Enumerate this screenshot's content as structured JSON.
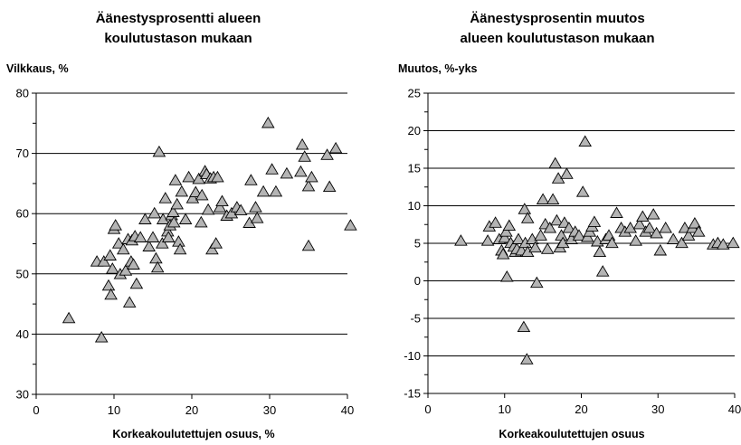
{
  "chart_data": [
    {
      "type": "scatter",
      "title": [
        "Äänestysprosentti  alueen",
        "koulutustason mukaan"
      ],
      "ylabel": "Vilkkaus, %",
      "xlabel": "Korkeakoulutettujen osuus, %",
      "xlim": [
        0,
        40
      ],
      "ylim": [
        30,
        80
      ],
      "xticks": [
        "0",
        "10",
        "20",
        "30",
        "40"
      ],
      "yticks": [
        "30",
        "40",
        "50",
        "60",
        "70",
        "80"
      ],
      "grid": "horizontal",
      "marker": "triangle",
      "marker_color": "#b4b4b4",
      "points": [
        [
          4.2,
          42.6
        ],
        [
          8.4,
          39.4
        ],
        [
          7.8,
          52.0
        ],
        [
          8.7,
          52.0
        ],
        [
          9.3,
          48.0
        ],
        [
          9.5,
          53.0
        ],
        [
          9.6,
          46.5
        ],
        [
          9.8,
          50.8
        ],
        [
          10.0,
          57.4
        ],
        [
          10.2,
          58.0
        ],
        [
          10.6,
          55.0
        ],
        [
          10.8,
          49.9
        ],
        [
          11.2,
          54.0
        ],
        [
          11.5,
          50.5
        ],
        [
          11.8,
          55.7
        ],
        [
          12.0,
          45.2
        ],
        [
          12.2,
          52.0
        ],
        [
          12.3,
          55.5
        ],
        [
          12.5,
          51.5
        ],
        [
          12.7,
          56.2
        ],
        [
          12.9,
          48.3
        ],
        [
          13.4,
          56.0
        ],
        [
          14.0,
          59.0
        ],
        [
          14.5,
          54.5
        ],
        [
          15.0,
          56.0
        ],
        [
          15.2,
          60.0
        ],
        [
          15.4,
          52.5
        ],
        [
          15.6,
          51.0
        ],
        [
          15.8,
          70.2
        ],
        [
          16.2,
          55.0
        ],
        [
          16.3,
          59.0
        ],
        [
          16.6,
          62.5
        ],
        [
          16.9,
          57.0
        ],
        [
          17.0,
          56.0
        ],
        [
          17.2,
          58.0
        ],
        [
          17.4,
          59.7
        ],
        [
          17.6,
          60.2
        ],
        [
          17.7,
          58.5
        ],
        [
          17.9,
          65.5
        ],
        [
          18.1,
          61.5
        ],
        [
          18.3,
          55.3
        ],
        [
          18.5,
          54.0
        ],
        [
          18.7,
          63.6
        ],
        [
          19.2,
          59.0
        ],
        [
          19.6,
          66.0
        ],
        [
          20.1,
          62.5
        ],
        [
          20.5,
          63.5
        ],
        [
          20.9,
          65.7
        ],
        [
          21.2,
          58.5
        ],
        [
          21.3,
          63.0
        ],
        [
          21.7,
          67.0
        ],
        [
          21.9,
          66.5
        ],
        [
          22.1,
          60.6
        ],
        [
          22.4,
          65.8
        ],
        [
          22.6,
          54.0
        ],
        [
          22.8,
          66.0
        ],
        [
          23.1,
          55.0
        ],
        [
          23.3,
          66.0
        ],
        [
          23.6,
          61.0
        ],
        [
          23.9,
          62.0
        ],
        [
          24.5,
          59.6
        ],
        [
          25.1,
          60.0
        ],
        [
          25.8,
          61.0
        ],
        [
          26.3,
          60.5
        ],
        [
          27.4,
          58.4
        ],
        [
          27.6,
          65.5
        ],
        [
          28.2,
          61.0
        ],
        [
          28.4,
          59.2
        ],
        [
          29.2,
          63.6
        ],
        [
          29.8,
          75.0
        ],
        [
          30.3,
          67.3
        ],
        [
          30.8,
          63.6
        ],
        [
          32.2,
          66.6
        ],
        [
          34.0,
          66.9
        ],
        [
          34.2,
          71.4
        ],
        [
          34.5,
          69.4
        ],
        [
          35.0,
          64.5
        ],
        [
          35.0,
          54.6
        ],
        [
          35.4,
          66.0
        ],
        [
          37.4,
          69.7
        ],
        [
          37.7,
          64.4
        ],
        [
          38.5,
          70.8
        ],
        [
          40.4,
          58.0
        ]
      ]
    },
    {
      "type": "scatter",
      "title": [
        "Äänestysprosentin muutos",
        "alueen koulutustason mukaan"
      ],
      "ylabel": "Muutos, %-yks",
      "xlabel": "Korkeakoulutettujen osuus",
      "xlim": [
        0,
        40
      ],
      "ylim": [
        -15,
        25
      ],
      "xticks": [
        "0",
        "10",
        "20",
        "30",
        "40"
      ],
      "yticks": [
        "-15",
        "-10",
        "-5",
        "0",
        "5",
        "10",
        "15",
        "20",
        "25"
      ],
      "grid": "horizontal",
      "marker": "triangle",
      "marker_color": "#b4b4b4",
      "points": [
        [
          4.3,
          5.3
        ],
        [
          7.8,
          5.3
        ],
        [
          8.0,
          7.2
        ],
        [
          8.8,
          7.7
        ],
        [
          9.3,
          5.5
        ],
        [
          9.6,
          4.0
        ],
        [
          9.8,
          3.5
        ],
        [
          10.0,
          5.7
        ],
        [
          10.2,
          6.5
        ],
        [
          10.3,
          0.5
        ],
        [
          10.6,
          7.3
        ],
        [
          10.8,
          5.0
        ],
        [
          11.2,
          4.5
        ],
        [
          11.4,
          3.8
        ],
        [
          11.6,
          4.2
        ],
        [
          11.8,
          5.5
        ],
        [
          12.2,
          4.0
        ],
        [
          12.5,
          -6.2
        ],
        [
          12.6,
          9.5
        ],
        [
          12.7,
          5.0
        ],
        [
          12.9,
          -10.5
        ],
        [
          13.0,
          8.3
        ],
        [
          13.0,
          3.8
        ],
        [
          13.6,
          5.5
        ],
        [
          14.0,
          4.4
        ],
        [
          14.2,
          -0.3
        ],
        [
          14.7,
          6.0
        ],
        [
          15.0,
          10.8
        ],
        [
          15.3,
          7.5
        ],
        [
          15.6,
          4.2
        ],
        [
          15.9,
          7.0
        ],
        [
          16.3,
          10.8
        ],
        [
          16.6,
          15.6
        ],
        [
          16.8,
          8.0
        ],
        [
          17.0,
          13.6
        ],
        [
          17.2,
          4.4
        ],
        [
          17.4,
          6.0
        ],
        [
          17.6,
          5.0
        ],
        [
          17.8,
          7.7
        ],
        [
          18.1,
          14.2
        ],
        [
          18.4,
          7.0
        ],
        [
          18.7,
          5.5
        ],
        [
          19.2,
          6.5
        ],
        [
          19.7,
          6.0
        ],
        [
          20.2,
          11.8
        ],
        [
          20.5,
          18.5
        ],
        [
          20.8,
          5.8
        ],
        [
          21.1,
          6.5
        ],
        [
          21.4,
          7.2
        ],
        [
          21.7,
          7.8
        ],
        [
          22.1,
          5.2
        ],
        [
          22.4,
          3.8
        ],
        [
          22.8,
          1.2
        ],
        [
          23.2,
          5.5
        ],
        [
          23.6,
          6.0
        ],
        [
          24.0,
          5.0
        ],
        [
          24.6,
          9.0
        ],
        [
          25.2,
          7.0
        ],
        [
          25.7,
          6.5
        ],
        [
          26.4,
          7.0
        ],
        [
          27.1,
          5.3
        ],
        [
          27.6,
          7.5
        ],
        [
          28.0,
          8.5
        ],
        [
          28.4,
          6.5
        ],
        [
          28.9,
          7.0
        ],
        [
          29.4,
          8.8
        ],
        [
          29.8,
          6.3
        ],
        [
          30.3,
          4.0
        ],
        [
          31.0,
          7.0
        ],
        [
          32.0,
          5.5
        ],
        [
          33.1,
          5.0
        ],
        [
          33.5,
          7.0
        ],
        [
          34.0,
          6.0
        ],
        [
          34.5,
          7.0
        ],
        [
          34.8,
          7.6
        ],
        [
          35.3,
          6.5
        ],
        [
          37.2,
          4.8
        ],
        [
          37.8,
          5.0
        ],
        [
          38.5,
          4.8
        ],
        [
          39.8,
          5.0
        ]
      ]
    }
  ]
}
